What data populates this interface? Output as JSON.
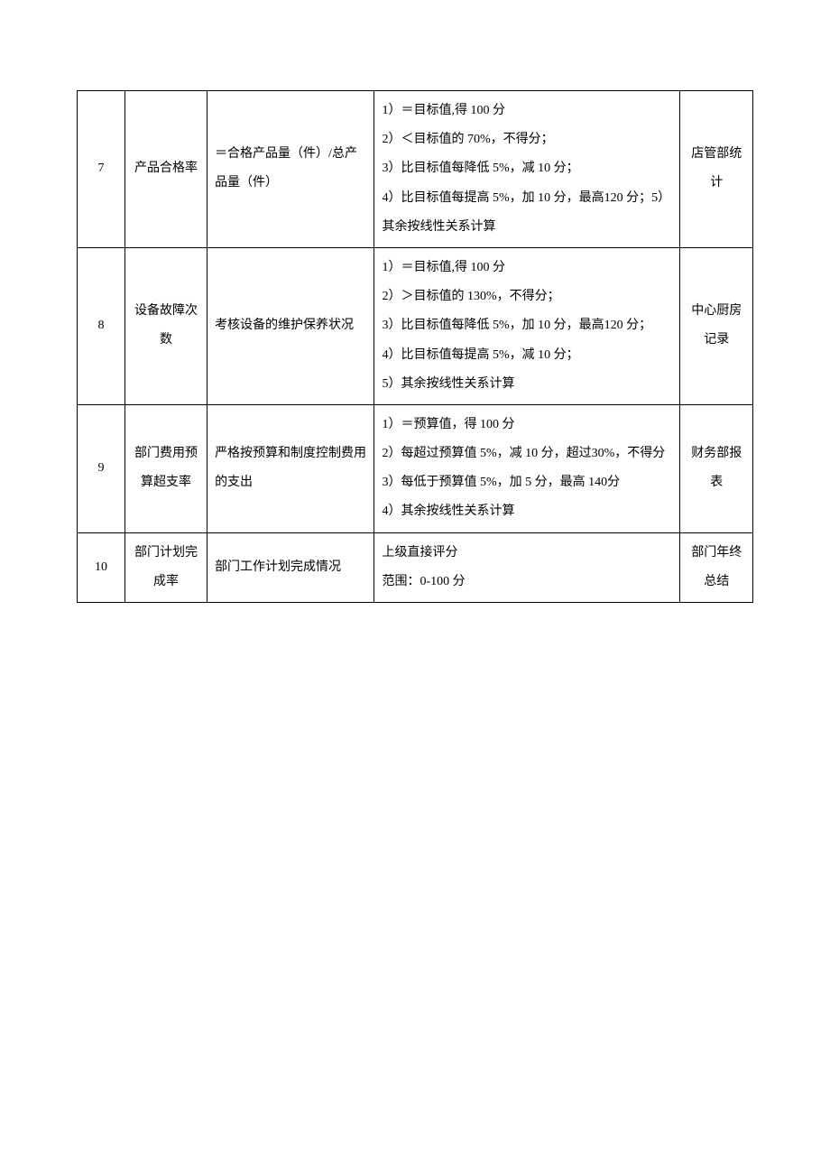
{
  "table": {
    "rows": [
      {
        "num": "7",
        "name": "产品合格率",
        "formula": "＝合格产品量（件）/总产品量（件）",
        "rules": [
          "1）＝目标值,得 100 分",
          "2）＜目标值的 70%，不得分；",
          "3）比目标值每降低 5%，减 10 分；",
          "4）比目标值每提高 5%，加 10 分，最高120 分；5）其余按线性关系计算"
        ],
        "source": "店管部统计"
      },
      {
        "num": "8",
        "name": "设备故障次数",
        "formula": "考核设备的维护保养状况",
        "rules": [
          "1）＝目标值,得 100 分",
          "2）＞目标值的 130%，不得分；",
          "3）比目标值每降低 5%，加 10 分，最高120 分；",
          "4）比目标值每提高 5%，减 10 分；",
          "5）其余按线性关系计算"
        ],
        "source": "中心厨房记录"
      },
      {
        "num": "9",
        "name": "部门费用预算超支率",
        "formula": "严格按预算和制度控制费用的支出",
        "rules": [
          "1）＝预算值，得 100 分",
          "2）每超过预算值 5%，减 10 分，超过30%，不得分",
          "3）每低于预算值 5%，加 5 分，最高 140分",
          "4）其余按线性关系计算"
        ],
        "source": "财务部报表"
      },
      {
        "num": "10",
        "name": "部门计划完成率",
        "formula": "部门工作计划完成情况",
        "rules": [
          "上级直接评分",
          "范围：0-100 分"
        ],
        "source": "部门年终总结"
      }
    ]
  }
}
